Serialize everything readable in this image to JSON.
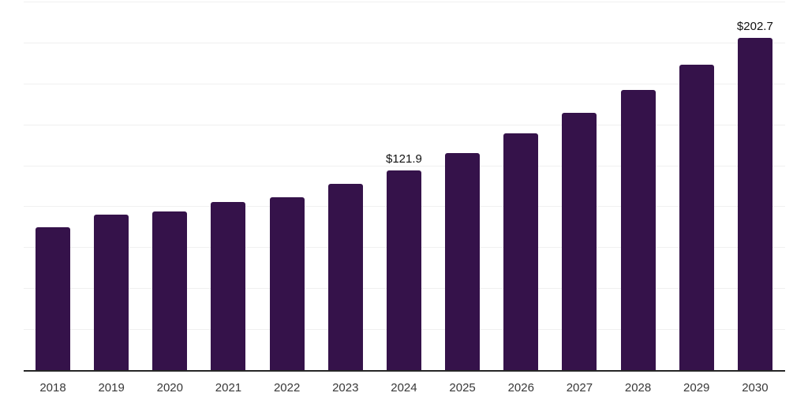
{
  "page": {
    "background_color": "#ffffff"
  },
  "chart_data": {
    "type": "bar",
    "title": "",
    "xlabel": "",
    "ylabel": "",
    "categories": [
      "2018",
      "2019",
      "2020",
      "2021",
      "2022",
      "2023",
      "2024",
      "2025",
      "2026",
      "2027",
      "2028",
      "2029",
      "2030"
    ],
    "values": [
      87.4,
      94.9,
      96.7,
      102.6,
      105.5,
      113.9,
      121.9,
      132.7,
      144.5,
      157.3,
      171.2,
      186.4,
      202.7
    ],
    "data_labels": [
      null,
      null,
      null,
      null,
      null,
      null,
      "$121.9",
      null,
      null,
      null,
      null,
      null,
      "$202.7"
    ],
    "value_prefix": "$",
    "ylim": [
      0,
      225
    ],
    "gridline_step": 25,
    "grid": true,
    "y_axis_tick_labels_visible": false,
    "legend": false,
    "bar_color": "#35124A",
    "gridline_color": "#f0f0f0",
    "axis_color": "#262626",
    "tick_label_color": "#383838",
    "data_label_color": "#111111"
  }
}
